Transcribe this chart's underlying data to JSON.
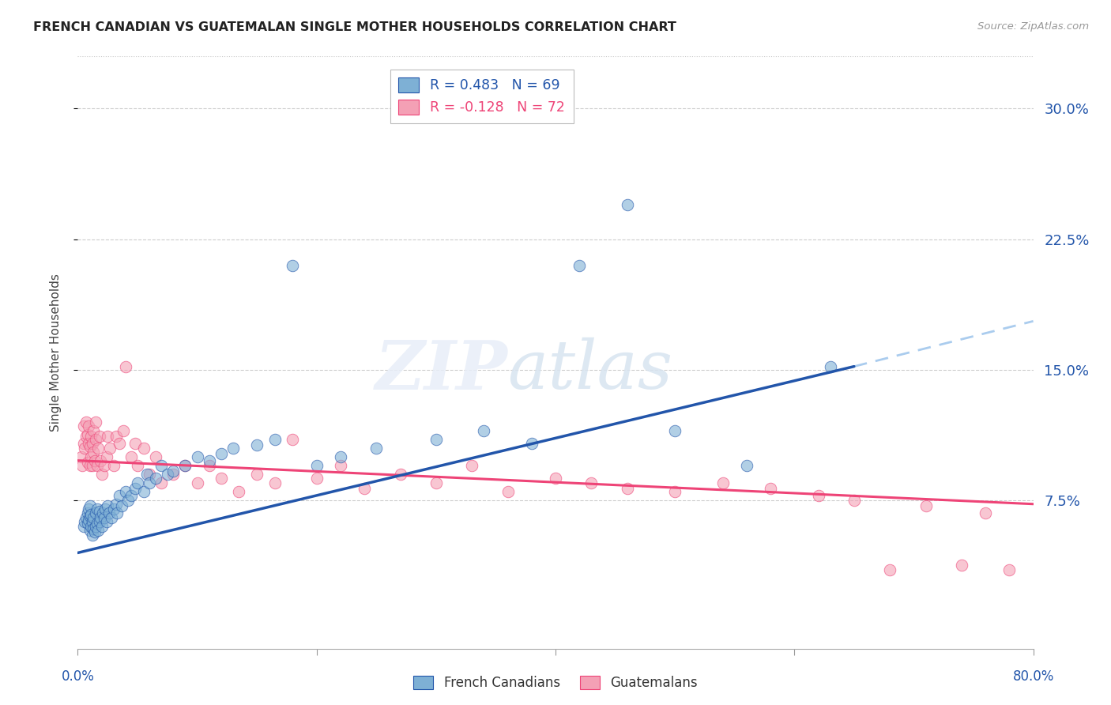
{
  "title": "FRENCH CANADIAN VS GUATEMALAN SINGLE MOTHER HOUSEHOLDS CORRELATION CHART",
  "source": "Source: ZipAtlas.com",
  "ylabel": "Single Mother Households",
  "yticks": [
    0.075,
    0.15,
    0.225,
    0.3
  ],
  "ytick_labels": [
    "7.5%",
    "15.0%",
    "22.5%",
    "30.0%"
  ],
  "xlim": [
    0.0,
    0.8
  ],
  "ylim": [
    -0.01,
    0.33
  ],
  "legend_r1": "R = 0.483   N = 69",
  "legend_r2": "R = -0.128   N = 72",
  "color_blue": "#7EB0D5",
  "color_pink": "#F4A0B5",
  "trend_blue": "#2255AA",
  "trend_pink": "#EE4477",
  "trend_blue_dashed": "#AACCEE",
  "grid_color": "#CCCCCC",
  "fc_trend_start_x": 0.0,
  "fc_trend_start_y": 0.045,
  "fc_trend_end_x": 0.65,
  "fc_trend_end_y": 0.152,
  "fc_trend_ext_end_x": 0.8,
  "fc_trend_ext_end_y": 0.178,
  "gt_trend_start_x": 0.0,
  "gt_trend_start_y": 0.098,
  "gt_trend_end_x": 0.8,
  "gt_trend_end_y": 0.073,
  "french_canadian_x": [
    0.005,
    0.006,
    0.007,
    0.008,
    0.008,
    0.009,
    0.009,
    0.01,
    0.01,
    0.01,
    0.011,
    0.011,
    0.012,
    0.012,
    0.013,
    0.013,
    0.014,
    0.015,
    0.015,
    0.016,
    0.016,
    0.017,
    0.018,
    0.018,
    0.019,
    0.02,
    0.021,
    0.022,
    0.023,
    0.024,
    0.025,
    0.026,
    0.028,
    0.03,
    0.032,
    0.033,
    0.035,
    0.037,
    0.04,
    0.042,
    0.045,
    0.048,
    0.05,
    0.055,
    0.058,
    0.06,
    0.065,
    0.07,
    0.075,
    0.08,
    0.09,
    0.1,
    0.11,
    0.12,
    0.13,
    0.15,
    0.165,
    0.18,
    0.2,
    0.22,
    0.25,
    0.3,
    0.34,
    0.38,
    0.42,
    0.46,
    0.5,
    0.56,
    0.63
  ],
  "french_canadian_y": [
    0.06,
    0.063,
    0.065,
    0.062,
    0.068,
    0.064,
    0.07,
    0.058,
    0.066,
    0.072,
    0.06,
    0.067,
    0.055,
    0.063,
    0.059,
    0.065,
    0.057,
    0.06,
    0.068,
    0.062,
    0.07,
    0.058,
    0.063,
    0.069,
    0.065,
    0.06,
    0.068,
    0.065,
    0.07,
    0.063,
    0.072,
    0.068,
    0.065,
    0.07,
    0.073,
    0.068,
    0.078,
    0.072,
    0.08,
    0.075,
    0.078,
    0.082,
    0.085,
    0.08,
    0.09,
    0.085,
    0.088,
    0.095,
    0.09,
    0.092,
    0.095,
    0.1,
    0.098,
    0.102,
    0.105,
    0.107,
    0.11,
    0.21,
    0.095,
    0.1,
    0.105,
    0.11,
    0.115,
    0.108,
    0.21,
    0.245,
    0.115,
    0.095,
    0.152
  ],
  "guatemalan_x": [
    0.003,
    0.004,
    0.005,
    0.005,
    0.006,
    0.007,
    0.007,
    0.008,
    0.008,
    0.009,
    0.009,
    0.01,
    0.01,
    0.011,
    0.011,
    0.012,
    0.012,
    0.013,
    0.013,
    0.014,
    0.015,
    0.015,
    0.016,
    0.017,
    0.018,
    0.019,
    0.02,
    0.022,
    0.024,
    0.025,
    0.027,
    0.03,
    0.032,
    0.035,
    0.038,
    0.04,
    0.045,
    0.048,
    0.05,
    0.055,
    0.06,
    0.065,
    0.07,
    0.08,
    0.09,
    0.1,
    0.11,
    0.12,
    0.135,
    0.15,
    0.165,
    0.18,
    0.2,
    0.22,
    0.24,
    0.27,
    0.3,
    0.33,
    0.36,
    0.4,
    0.43,
    0.46,
    0.5,
    0.54,
    0.58,
    0.62,
    0.65,
    0.68,
    0.71,
    0.74,
    0.76,
    0.78
  ],
  "guatemalan_y": [
    0.1,
    0.095,
    0.108,
    0.118,
    0.105,
    0.112,
    0.12,
    0.097,
    0.113,
    0.108,
    0.118,
    0.095,
    0.106,
    0.112,
    0.1,
    0.095,
    0.108,
    0.103,
    0.115,
    0.098,
    0.11,
    0.12,
    0.095,
    0.105,
    0.112,
    0.098,
    0.09,
    0.095,
    0.1,
    0.112,
    0.105,
    0.095,
    0.112,
    0.108,
    0.115,
    0.152,
    0.1,
    0.108,
    0.095,
    0.105,
    0.09,
    0.1,
    0.085,
    0.09,
    0.095,
    0.085,
    0.095,
    0.088,
    0.08,
    0.09,
    0.085,
    0.11,
    0.088,
    0.095,
    0.082,
    0.09,
    0.085,
    0.095,
    0.08,
    0.088,
    0.085,
    0.082,
    0.08,
    0.085,
    0.082,
    0.078,
    0.075,
    0.035,
    0.072,
    0.038,
    0.068,
    0.035
  ]
}
